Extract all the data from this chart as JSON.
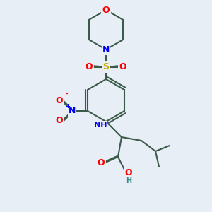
{
  "bg_color": "#e8eef5",
  "bond_color": "#3a5a4a",
  "bond_width": 1.5,
  "atom_colors": {
    "O": "#ff0000",
    "N": "#0000ff",
    "S": "#ccaa00",
    "C": "#3a5a4a",
    "H": "#3a8a8a"
  },
  "font_size": 9,
  "font_size_small": 7
}
